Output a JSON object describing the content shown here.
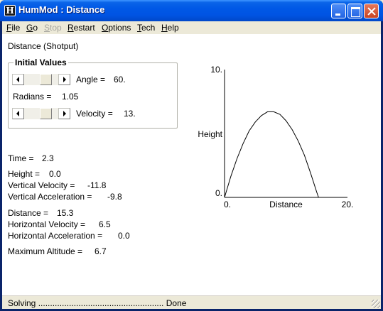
{
  "window": {
    "title": "HumMod : Distance",
    "icon": "hummod-app-icon"
  },
  "menu": [
    {
      "label": "File",
      "underline": "F",
      "rest": "ile",
      "enabled": true
    },
    {
      "label": "Go",
      "underline": "G",
      "rest": "o",
      "enabled": true
    },
    {
      "label": "Stop",
      "underline": "S",
      "rest": "top",
      "enabled": false
    },
    {
      "label": "Restart",
      "underline": "R",
      "rest": "estart",
      "enabled": true
    },
    {
      "label": "Options",
      "underline": "O",
      "rest": "ptions",
      "enabled": true
    },
    {
      "label": "Tech",
      "underline": "T",
      "rest": "ech",
      "enabled": true
    },
    {
      "label": "Help",
      "underline": "H",
      "rest": "elp",
      "enabled": true
    }
  ],
  "panel": {
    "heading": "Distance (Shotput)",
    "initial_values": {
      "title": "Initial Values",
      "angle_label": "Angle =",
      "angle_value": "60.",
      "radians_label": "Radians =",
      "radians_value": "1.05",
      "velocity_label": "Velocity =",
      "velocity_value": "13."
    },
    "readouts": {
      "time_label": "Time =",
      "time_value": "2.3",
      "height_label": "Height =",
      "height_value": "0.0",
      "vvel_label": "Vertical Velocity =",
      "vvel_value": "-11.8",
      "vacc_label": "Vertical Acceleration =",
      "vacc_value": "-9.8",
      "dist_label": "Distance =",
      "dist_value": "15.3",
      "hvel_label": "Horizontal Velocity =",
      "hvel_value": "6.5",
      "hacc_label": "Horizontal Acceleration =",
      "hacc_value": "0.0",
      "maxalt_label": "Maximum Altitude =",
      "maxalt_value": "6.7"
    }
  },
  "chart_data": {
    "type": "line",
    "xlabel": "Distance",
    "ylabel": "Height",
    "xlim": [
      0,
      20
    ],
    "ylim": [
      0,
      10
    ],
    "x_tick_labels": [
      "0.",
      "20."
    ],
    "y_tick_labels": [
      "0.",
      "10."
    ],
    "grid": false,
    "series": [
      {
        "x": [
          0,
          1,
          2,
          3,
          4,
          5,
          6,
          7,
          8,
          9,
          10,
          11,
          12,
          13,
          14,
          15,
          15.3
        ],
        "y": [
          0,
          1.6,
          3.0,
          4.2,
          5.2,
          5.9,
          6.4,
          6.7,
          6.7,
          6.5,
          6.0,
          5.3,
          4.4,
          3.3,
          1.9,
          0.4,
          0.0
        ]
      }
    ]
  },
  "status": {
    "text": "Solving ..................................................... Done"
  }
}
